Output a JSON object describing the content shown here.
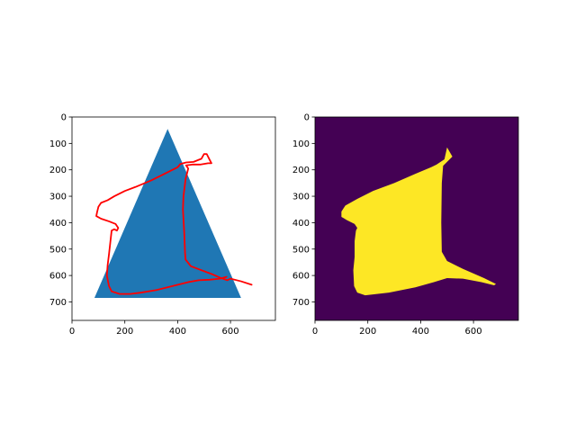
{
  "chart_data": [
    {
      "type": "image",
      "title": "",
      "xlabel": "",
      "ylabel": "",
      "xlim": [
        0,
        770
      ],
      "ylim": [
        770,
        0
      ],
      "y_inverted": true,
      "grid": false,
      "xticks": [
        0,
        200,
        400,
        600
      ],
      "yticks": [
        0,
        100,
        200,
        300,
        400,
        500,
        600,
        700
      ],
      "image_content": {
        "background_color": "#ffffff",
        "triangle": {
          "color": "#1f77b4",
          "vertices": [
            [
              362,
              45
            ],
            [
              85,
              685
            ],
            [
              640,
              685
            ]
          ]
        }
      },
      "series": [
        {
          "color": "#ff0000",
          "points": [
            [
              680,
              635
            ],
            [
              640,
              622
            ],
            [
              600,
              612
            ],
            [
              588,
              618
            ],
            [
              560,
              608
            ],
            [
              530,
              595
            ],
            [
              450,
              565
            ],
            [
              430,
              540
            ],
            [
              428,
              515
            ],
            [
              425,
              440
            ],
            [
              420,
              350
            ],
            [
              422,
              300
            ],
            [
              430,
              235
            ],
            [
              440,
              195
            ],
            [
              432,
              183
            ],
            [
              455,
              180
            ],
            [
              485,
              180
            ],
            [
              515,
              175
            ],
            [
              528,
              175
            ],
            [
              520,
              160
            ],
            [
              510,
              140
            ],
            [
              500,
              140
            ],
            [
              490,
              158
            ],
            [
              460,
              170
            ],
            [
              432,
              172
            ],
            [
              410,
              178
            ],
            [
              400,
              190
            ],
            [
              360,
              210
            ],
            [
              300,
              240
            ],
            [
              240,
              265
            ],
            [
              200,
              280
            ],
            [
              160,
              300
            ],
            [
              135,
              315
            ],
            [
              110,
              325
            ],
            [
              100,
              340
            ],
            [
              95,
              360
            ],
            [
              92,
              375
            ],
            [
              110,
              385
            ],
            [
              140,
              395
            ],
            [
              165,
              405
            ],
            [
              175,
              420
            ],
            [
              170,
              430
            ],
            [
              160,
              425
            ],
            [
              150,
              430
            ],
            [
              145,
              475
            ],
            [
              140,
              520
            ],
            [
              135,
              560
            ],
            [
              132,
              600
            ],
            [
              140,
              640
            ],
            [
              150,
              660
            ],
            [
              180,
              670
            ],
            [
              220,
              670
            ],
            [
              260,
              665
            ],
            [
              320,
              655
            ],
            [
              380,
              640
            ],
            [
              440,
              625
            ],
            [
              480,
              618
            ],
            [
              520,
              616
            ],
            [
              560,
              612
            ],
            [
              585,
              605
            ]
          ]
        }
      ]
    },
    {
      "type": "heatmap",
      "title": "",
      "xlabel": "",
      "ylabel": "",
      "xlim": [
        0,
        770
      ],
      "ylim": [
        770,
        0
      ],
      "y_inverted": true,
      "grid": false,
      "xticks": [
        0,
        200,
        400,
        600
      ],
      "yticks": [
        0,
        100,
        200,
        300,
        400,
        500,
        600,
        700
      ],
      "colormap": "viridis",
      "background_color": "#440154",
      "mask_color": "#fde725",
      "mask_polygon": [
        [
          500,
          115
        ],
        [
          520,
          150
        ],
        [
          500,
          170
        ],
        [
          485,
          185
        ],
        [
          480,
          250
        ],
        [
          478,
          400
        ],
        [
          480,
          510
        ],
        [
          500,
          545
        ],
        [
          560,
          575
        ],
        [
          640,
          610
        ],
        [
          685,
          632
        ],
        [
          678,
          637
        ],
        [
          630,
          625
        ],
        [
          560,
          612
        ],
        [
          500,
          610
        ],
        [
          450,
          625
        ],
        [
          380,
          645
        ],
        [
          280,
          665
        ],
        [
          190,
          675
        ],
        [
          160,
          665
        ],
        [
          148,
          640
        ],
        [
          145,
          580
        ],
        [
          150,
          530
        ],
        [
          150,
          470
        ],
        [
          155,
          430
        ],
        [
          160,
          420
        ],
        [
          150,
          405
        ],
        [
          120,
          390
        ],
        [
          100,
          378
        ],
        [
          100,
          358
        ],
        [
          115,
          335
        ],
        [
          160,
          310
        ],
        [
          220,
          280
        ],
        [
          300,
          250
        ],
        [
          380,
          215
        ],
        [
          440,
          190
        ],
        [
          460,
          180
        ],
        [
          490,
          160
        ]
      ]
    }
  ]
}
